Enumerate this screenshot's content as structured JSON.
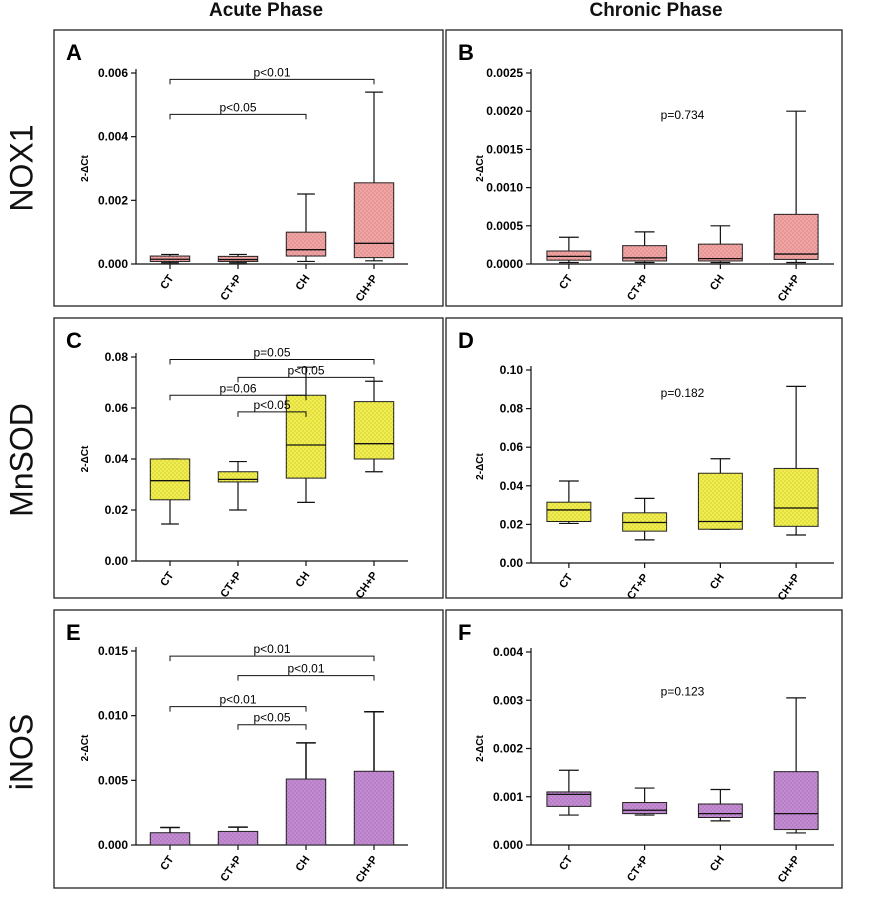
{
  "column_headers": [
    "Acute Phase",
    "Chronic Phase"
  ],
  "row_labels": [
    "NOX1",
    "MnSOD",
    "iNOS"
  ],
  "colors": {
    "pink": "#f4a3a3",
    "yellow": "#f2ef4c",
    "purple": "#c48ad4"
  },
  "chart_data": [
    {
      "panel": "A",
      "type": "box",
      "color": "pink",
      "ylabel": "2-ΔCt",
      "yticks": [
        "0.000",
        "0.002",
        "0.004",
        "0.006"
      ],
      "ylim": [
        0,
        0.006
      ],
      "categories": [
        "CT",
        "CT+P",
        "CH",
        "CH+P"
      ],
      "series": [
        {
          "category": "CT",
          "min": 4e-05,
          "q1": 8e-05,
          "median": 0.00015,
          "q3": 0.00025,
          "max": 0.0003
        },
        {
          "category": "CT+P",
          "min": 4e-05,
          "q1": 8e-05,
          "median": 0.00014,
          "q3": 0.00024,
          "max": 0.0003
        },
        {
          "category": "CH",
          "min": 8e-05,
          "q1": 0.00025,
          "median": 0.00045,
          "q3": 0.001,
          "max": 0.0022
        },
        {
          "category": "CH+P",
          "min": 0.0001,
          "q1": 0.0002,
          "median": 0.00065,
          "q3": 0.00255,
          "max": 0.0054
        }
      ],
      "annotations": [
        {
          "text": "p<0.01",
          "from": "CT",
          "to": "CH+P",
          "y": 0.0058
        },
        {
          "text": "p<0.05",
          "from": "CT",
          "to": "CH",
          "y": 0.0047
        }
      ]
    },
    {
      "panel": "B",
      "type": "box",
      "color": "pink",
      "ylabel": "2-ΔCt",
      "yticks": [
        "0.0000",
        "0.0005",
        "0.0010",
        "0.0015",
        "0.0020",
        "0.0025"
      ],
      "ylim": [
        0,
        0.0025
      ],
      "categories": [
        "CT",
        "CT+P",
        "CH",
        "CH+P"
      ],
      "series": [
        {
          "category": "CT",
          "min": 2e-05,
          "q1": 5e-05,
          "median": 0.0001,
          "q3": 0.00017,
          "max": 0.00035
        },
        {
          "category": "CT+P",
          "min": 2e-05,
          "q1": 4e-05,
          "median": 8e-05,
          "q3": 0.00024,
          "max": 0.00042
        },
        {
          "category": "CH",
          "min": 2e-05,
          "q1": 4e-05,
          "median": 7e-05,
          "q3": 0.00026,
          "max": 0.0005
        },
        {
          "category": "CH+P",
          "min": 2e-05,
          "q1": 6e-05,
          "median": 0.00013,
          "q3": 0.00065,
          "max": 0.002
        }
      ],
      "overall_p": {
        "text": "p=0.734",
        "y": 0.0019
      }
    },
    {
      "panel": "C",
      "type": "box",
      "color": "yellow",
      "ylabel": "2-ΔCt",
      "yticks": [
        "0.00",
        "0.02",
        "0.04",
        "0.06",
        "0.08"
      ],
      "ylim": [
        0,
        0.08
      ],
      "categories": [
        "CT",
        "CT+P",
        "CH",
        "CH+P"
      ],
      "series": [
        {
          "category": "CT",
          "min": 0.0145,
          "q1": 0.024,
          "median": 0.0315,
          "q3": 0.04,
          "max": 0.04
        },
        {
          "category": "CT+P",
          "min": 0.02,
          "q1": 0.031,
          "median": 0.032,
          "q3": 0.035,
          "max": 0.039
        },
        {
          "category": "CH",
          "min": 0.023,
          "q1": 0.0325,
          "median": 0.0455,
          "q3": 0.065,
          "max": 0.076
        },
        {
          "category": "CH+P",
          "min": 0.035,
          "q1": 0.04,
          "median": 0.046,
          "q3": 0.0625,
          "max": 0.0705
        }
      ],
      "annotations": [
        {
          "text": "p=0.05",
          "from": "CT",
          "to": "CH+P",
          "y": 0.079
        },
        {
          "text": "p<0.05",
          "from": "CT+P",
          "to": "CH+P",
          "y": 0.072
        },
        {
          "text": "p=0.06",
          "from": "CT",
          "to": "CH",
          "y": 0.065
        },
        {
          "text": "p<0.05",
          "from": "CT+P",
          "to": "CH",
          "y": 0.0585
        }
      ]
    },
    {
      "panel": "D",
      "type": "box",
      "color": "yellow",
      "ylabel": "2-ΔCt",
      "yticks": [
        "0.00",
        "0.02",
        "0.04",
        "0.06",
        "0.08",
        "0.10"
      ],
      "ylim": [
        0,
        0.1
      ],
      "categories": [
        "CT",
        "CT+P",
        "CH",
        "CH+P"
      ],
      "series": [
        {
          "category": "CT",
          "min": 0.0205,
          "q1": 0.0215,
          "median": 0.0275,
          "q3": 0.0315,
          "max": 0.0425
        },
        {
          "category": "CT+P",
          "min": 0.012,
          "q1": 0.0165,
          "median": 0.021,
          "q3": 0.026,
          "max": 0.0335
        },
        {
          "category": "CH",
          "min": 0.0175,
          "q1": 0.0175,
          "median": 0.0215,
          "q3": 0.0465,
          "max": 0.054
        },
        {
          "category": "CH+P",
          "min": 0.0145,
          "q1": 0.019,
          "median": 0.0285,
          "q3": 0.049,
          "max": 0.0915
        }
      ],
      "overall_p": {
        "text": "p=0.182",
        "y": 0.086
      }
    },
    {
      "panel": "E",
      "type": "bar",
      "color": "purple",
      "ylabel": "2-ΔCt",
      "yticks": [
        "0.000",
        "0.005",
        "0.010",
        "0.015"
      ],
      "ylim": [
        0,
        0.015
      ],
      "categories": [
        "CT",
        "CT+P",
        "CH",
        "CH+P"
      ],
      "series": [
        {
          "category": "CT",
          "mean": 0.00095,
          "err": 0.00135
        },
        {
          "category": "CT+P",
          "mean": 0.00105,
          "err": 0.00138
        },
        {
          "category": "CH",
          "mean": 0.0051,
          "err": 0.0079
        },
        {
          "category": "CH+P",
          "mean": 0.0057,
          "err": 0.0103
        }
      ],
      "annotations": [
        {
          "text": "p<0.01",
          "from": "CT",
          "to": "CH+P",
          "y": 0.0146
        },
        {
          "text": "p<0.01",
          "from": "CT+P",
          "to": "CH+P",
          "y": 0.0131
        },
        {
          "text": "p<0.01",
          "from": "CT",
          "to": "CH",
          "y": 0.0107
        },
        {
          "text": "p<0.05",
          "from": "CT+P",
          "to": "CH",
          "y": 0.0093
        }
      ]
    },
    {
      "panel": "F",
      "type": "box",
      "color": "purple",
      "ylabel": "2-ΔCt",
      "yticks": [
        "0.000",
        "0.001",
        "0.002",
        "0.003",
        "0.004"
      ],
      "ylim": [
        0,
        0.004
      ],
      "categories": [
        "CT",
        "CT+P",
        "CH",
        "CH+P"
      ],
      "series": [
        {
          "category": "CT",
          "min": 0.00062,
          "q1": 0.0008,
          "median": 0.00105,
          "q3": 0.0011,
          "max": 0.00155
        },
        {
          "category": "CT+P",
          "min": 0.00062,
          "q1": 0.00065,
          "median": 0.00072,
          "q3": 0.00088,
          "max": 0.00118
        },
        {
          "category": "CH",
          "min": 0.0005,
          "q1": 0.00057,
          "median": 0.00065,
          "q3": 0.00085,
          "max": 0.00115
        },
        {
          "category": "CH+P",
          "min": 0.00025,
          "q1": 0.00032,
          "median": 0.00065,
          "q3": 0.00152,
          "max": 0.00305
        }
      ],
      "overall_p": {
        "text": "p=0.123",
        "y": 0.0031
      }
    }
  ]
}
